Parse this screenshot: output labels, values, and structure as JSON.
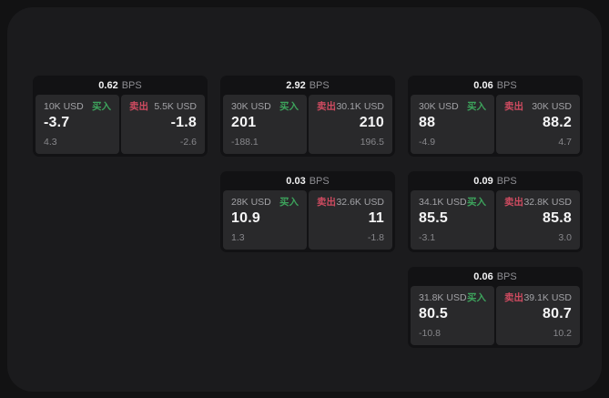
{
  "labels": {
    "bps": "BPS",
    "buy": "买入",
    "sell": "卖出"
  },
  "colors": {
    "buy_green": "#3da35c",
    "sell_red": "#ce4b60",
    "text_primary": "#f5f5f6",
    "text_secondary": "#8e8e93",
    "outer_bg": "#121213",
    "panel_bg": "#1b1b1d",
    "card_bg": "#121214",
    "tile_bg": "#29292b"
  },
  "cards": [
    {
      "row": 1,
      "col": 1,
      "bps_value": "0.62",
      "buy": {
        "amount": "10K USD",
        "price": "-3.7",
        "delta": "4.3"
      },
      "sell": {
        "amount": "5.5K USD",
        "price": "-1.8",
        "delta": "-2.6"
      }
    },
    {
      "row": 1,
      "col": 2,
      "bps_value": "2.92",
      "buy": {
        "amount": "30K USD",
        "price": "201",
        "delta": "-188.1"
      },
      "sell": {
        "amount": "30.1K USD",
        "price": "210",
        "delta": "196.5"
      }
    },
    {
      "row": 1,
      "col": 3,
      "bps_value": "0.06",
      "buy": {
        "amount": "30K USD",
        "price": "88",
        "delta": "-4.9"
      },
      "sell": {
        "amount": "30K USD",
        "price": "88.2",
        "delta": "4.7"
      }
    },
    {
      "row": 2,
      "col": 2,
      "bps_value": "0.03",
      "buy": {
        "amount": "28K USD",
        "price": "10.9",
        "delta": "1.3"
      },
      "sell": {
        "amount": "32.6K USD",
        "price": "11",
        "delta": "-1.8"
      }
    },
    {
      "row": 2,
      "col": 3,
      "bps_value": "0.09",
      "buy": {
        "amount": "34.1K USD",
        "price": "85.5",
        "delta": "-3.1"
      },
      "sell": {
        "amount": "32.8K USD",
        "price": "85.8",
        "delta": "3.0"
      }
    },
    {
      "row": 3,
      "col": 3,
      "bps_value": "0.06",
      "buy": {
        "amount": "31.8K USD",
        "price": "80.5",
        "delta": "-10.8"
      },
      "sell": {
        "amount": "39.1K USD",
        "price": "80.7",
        "delta": "10.2"
      }
    }
  ]
}
